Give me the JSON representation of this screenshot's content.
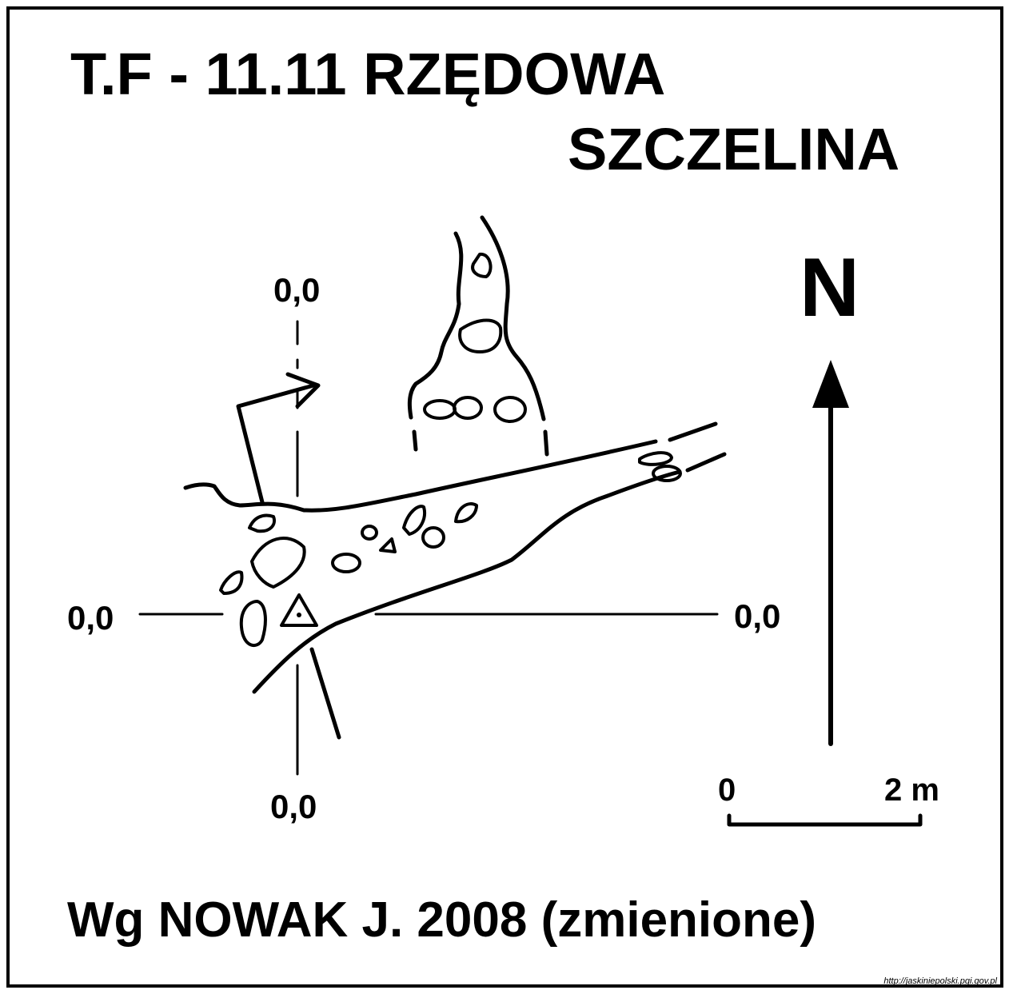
{
  "title": {
    "line1": "T.F - 11.11  RZĘDOWA",
    "line2": "SZCZELINA"
  },
  "north": {
    "label": "N"
  },
  "datums": {
    "top": "0,0",
    "left": "0,0",
    "right": "0,0",
    "bottom": "0,0"
  },
  "scale": {
    "start_label": "0",
    "end_label": "2 m"
  },
  "author": "Wg  NOWAK J. 2008 (zmienione)",
  "source_url": "http://jaskiniepolski.pgi.gov.pl"
}
